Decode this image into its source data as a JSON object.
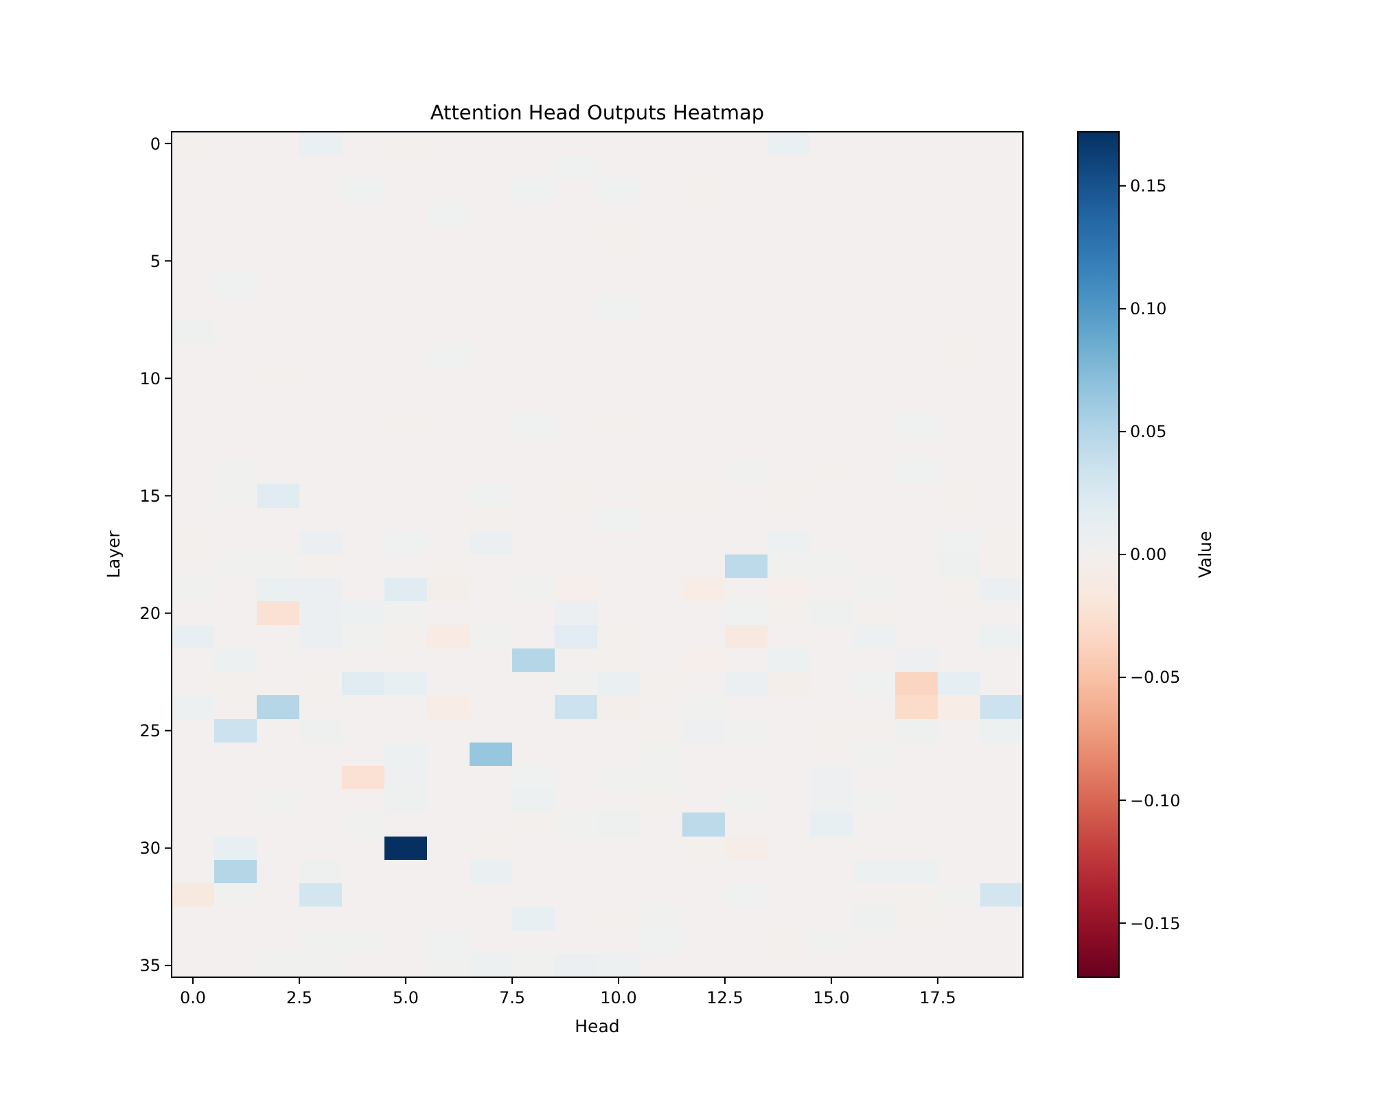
{
  "chart_data": {
    "type": "heatmap",
    "title": "Attention Head Outputs Heatmap",
    "xlabel": "Head",
    "ylabel": "Layer",
    "clabel": "Value",
    "x": [
      0,
      1,
      2,
      3,
      4,
      5,
      6,
      7,
      8,
      9,
      10,
      11,
      12,
      13,
      14,
      15,
      16,
      17,
      18,
      19
    ],
    "y_categories": [
      "0",
      null,
      null,
      null,
      null,
      "5",
      null,
      null,
      null,
      null,
      "10",
      null,
      null,
      null,
      null,
      "15",
      null,
      null,
      null,
      null,
      "20",
      null,
      null,
      null,
      null,
      "25",
      null,
      null,
      null,
      null,
      "30",
      null,
      null,
      null,
      null,
      "35"
    ],
    "xlim": [
      -0.5,
      19.5
    ],
    "xticks": [
      {
        "value": 0,
        "label": "0.0"
      },
      {
        "value": 2.5,
        "label": "2.5"
      },
      {
        "value": 5,
        "label": "5.0"
      },
      {
        "value": 7.5,
        "label": "7.5"
      },
      {
        "value": 10,
        "label": "10.0"
      },
      {
        "value": 12.5,
        "label": "12.5"
      },
      {
        "value": 15,
        "label": "15.0"
      },
      {
        "value": 17.5,
        "label": "17.5"
      }
    ],
    "clim": [
      -0.172,
      0.172
    ],
    "cticks": [
      {
        "value": -0.15,
        "label": "−0.15"
      },
      {
        "value": -0.1,
        "label": "−0.10"
      },
      {
        "value": -0.05,
        "label": "−0.05"
      },
      {
        "value": 0,
        "label": "0.00"
      },
      {
        "value": 0.05,
        "label": "0.05"
      },
      {
        "value": 0.1,
        "label": "0.10"
      },
      {
        "value": 0.15,
        "label": "0.15"
      }
    ],
    "cells": [
      [
        -0.003,
        0,
        0,
        0.01,
        0,
        -0.002,
        0,
        0,
        0,
        0,
        0,
        0,
        0,
        0,
        0.01,
        0,
        0,
        0,
        0,
        0
      ],
      [
        0,
        0,
        0,
        0,
        0,
        0,
        0,
        0,
        0,
        0.004,
        0,
        0,
        0,
        0,
        0,
        0,
        0,
        0,
        0,
        0
      ],
      [
        0,
        0,
        0,
        0,
        0.004,
        0,
        0,
        0,
        0.004,
        0,
        0.004,
        0,
        -0.002,
        0,
        0,
        0,
        0,
        0,
        0,
        0
      ],
      [
        0,
        0,
        0,
        0,
        0,
        0,
        0.004,
        0,
        0,
        0,
        0,
        0,
        0,
        0,
        0,
        0,
        0,
        0,
        0,
        0
      ],
      [
        0,
        0,
        0,
        0,
        0,
        0,
        0,
        0,
        0,
        0,
        -0.002,
        0,
        0,
        0,
        0,
        0,
        0,
        0,
        0,
        0
      ],
      [
        0,
        0,
        0,
        0,
        0,
        0,
        0,
        0,
        0,
        0,
        0,
        0,
        0,
        0,
        0,
        0,
        0,
        0,
        0,
        0
      ],
      [
        0,
        0.004,
        0,
        0,
        0,
        0,
        0,
        0,
        0,
        0,
        0,
        0,
        0,
        0,
        0,
        0,
        0,
        0,
        0,
        0
      ],
      [
        0,
        0,
        0,
        0,
        0,
        0,
        0,
        0,
        0,
        0,
        0.004,
        0,
        0,
        0,
        0,
        0,
        0,
        0,
        0,
        0
      ],
      [
        0.005,
        0,
        0,
        0,
        0,
        0,
        0,
        0,
        0,
        0,
        0,
        0,
        0,
        0,
        0,
        0,
        0,
        0,
        0,
        0
      ],
      [
        0,
        0,
        0,
        0,
        0,
        0,
        0.004,
        0,
        0,
        0,
        0,
        0,
        0,
        0,
        0,
        0,
        0,
        0,
        -0.002,
        0
      ],
      [
        0,
        0,
        -0.002,
        0,
        0,
        0,
        0,
        0,
        0,
        0,
        0,
        0,
        0,
        0,
        0,
        0,
        0,
        0,
        0,
        0
      ],
      [
        0,
        0,
        0,
        0,
        0,
        0,
        0,
        0,
        0,
        0,
        0,
        0,
        0,
        0,
        0,
        0,
        0,
        0,
        0,
        0
      ],
      [
        0,
        0,
        0,
        0,
        0,
        -0.002,
        0,
        0,
        0.004,
        0,
        -0.002,
        0,
        0,
        0,
        0,
        0,
        0,
        0.004,
        0,
        0
      ],
      [
        0,
        0,
        0,
        0,
        0,
        0,
        0,
        0,
        0,
        0,
        0,
        0,
        0,
        0,
        0,
        0,
        0,
        0,
        0,
        0
      ],
      [
        0,
        0.003,
        0,
        0,
        0,
        0,
        0,
        0,
        0,
        0,
        0,
        0,
        0,
        0.003,
        0,
        -0.002,
        0,
        0.004,
        0,
        0
      ],
      [
        0,
        0.003,
        0.02,
        0,
        0,
        0,
        0,
        0.004,
        0,
        -0.002,
        0,
        -0.002,
        -0.002,
        0,
        -0.002,
        0,
        0,
        0,
        -0.002,
        0
      ],
      [
        0,
        0,
        0,
        0,
        0,
        0,
        0,
        -0.002,
        0,
        0,
        0.004,
        0,
        0,
        0,
        0,
        0,
        0,
        0,
        0,
        0
      ],
      [
        -0.003,
        0,
        0,
        0.008,
        0,
        0.004,
        0,
        0.008,
        0,
        0,
        0,
        0,
        0,
        0,
        0.006,
        0,
        0,
        0,
        0.004,
        -0.002
      ],
      [
        0,
        0.003,
        0.003,
        -0.003,
        0,
        0,
        -0.002,
        0,
        0,
        0,
        0,
        0,
        0,
        0.045,
        0.003,
        0.003,
        0,
        0,
        0.005,
        -0.002
      ],
      [
        0.003,
        0,
        0.01,
        0.008,
        0,
        0.02,
        -0.004,
        0,
        0.003,
        -0.005,
        0,
        0,
        -0.01,
        0,
        -0.005,
        0,
        0.003,
        0,
        -0.002,
        0.008
      ],
      [
        0,
        0,
        -0.025,
        0.008,
        0.006,
        0.002,
        0,
        0,
        0,
        0.008,
        0,
        0,
        0,
        0.004,
        -0.002,
        0.005,
        -0.003,
        0,
        0,
        0
      ],
      [
        0.012,
        0,
        0,
        0.008,
        0.002,
        -0.003,
        -0.012,
        0.002,
        0,
        0.018,
        -0.002,
        0,
        0,
        -0.015,
        0,
        0,
        0.006,
        0,
        0,
        0.006
      ],
      [
        0,
        0.006,
        0,
        0,
        0,
        0,
        0,
        0,
        0.05,
        0,
        -0.002,
        0,
        -0.005,
        0,
        0.006,
        0,
        0,
        0.007,
        0,
        0
      ],
      [
        0,
        -0.002,
        0,
        -0.002,
        0.02,
        0.012,
        0,
        0,
        0,
        0.003,
        0.01,
        -0.002,
        0,
        0.008,
        -0.004,
        0,
        0.004,
        -0.035,
        0.015,
        0
      ],
      [
        0.006,
        0,
        0.05,
        0,
        0,
        0,
        -0.01,
        0,
        0,
        0.035,
        -0.004,
        0,
        0.002,
        0,
        0,
        0,
        0,
        -0.03,
        -0.01,
        0.035
      ],
      [
        0,
        0.035,
        0,
        0.005,
        0,
        0,
        0,
        0,
        0,
        0,
        0,
        -0.003,
        0.007,
        0.003,
        0,
        -0.002,
        -0.002,
        0.005,
        0,
        0.006
      ],
      [
        0,
        0,
        0,
        0,
        0,
        0.006,
        0,
        0.065,
        0,
        0,
        0,
        0.002,
        0,
        0,
        0,
        0,
        0.002,
        0,
        0,
        0
      ],
      [
        0,
        0,
        0,
        0,
        -0.025,
        0.007,
        0,
        0,
        0.004,
        0,
        0.002,
        0.002,
        0,
        0,
        0,
        0.007,
        0,
        0,
        0,
        0
      ],
      [
        0,
        0,
        0.002,
        0,
        0,
        0.005,
        0,
        0,
        0.006,
        0,
        0,
        -0.002,
        0,
        0.002,
        0,
        0.007,
        0.002,
        0,
        0,
        0
      ],
      [
        0,
        0,
        0,
        0,
        0.002,
        0,
        0,
        0,
        -0.003,
        0.002,
        0.005,
        0,
        0.045,
        0,
        0,
        0.012,
        0,
        0,
        0,
        0
      ],
      [
        0,
        0.012,
        0,
        0,
        0,
        0.172,
        0,
        -0.003,
        0,
        0,
        0,
        0,
        -0.002,
        -0.008,
        0,
        0,
        0,
        0,
        0,
        0
      ],
      [
        0,
        0.05,
        0,
        0.005,
        0,
        0,
        0,
        0.01,
        0,
        0,
        0,
        0,
        0,
        0,
        0,
        0,
        0.006,
        0.006,
        0,
        0
      ],
      [
        -0.015,
        0.002,
        0,
        0.03,
        0,
        0,
        0,
        0,
        0,
        0,
        0,
        0,
        0,
        0.004,
        0,
        0,
        0,
        -0.002,
        0.002,
        0.03
      ],
      [
        0,
        0,
        0,
        0,
        0,
        0,
        0,
        0,
        0.012,
        0,
        -0.002,
        0.002,
        0,
        0,
        0,
        0,
        0.005,
        -0.003,
        0,
        0
      ],
      [
        0,
        0,
        0,
        0.002,
        0.002,
        0,
        0.004,
        0,
        0,
        0,
        0,
        0.004,
        0,
        0,
        -0.002,
        0.002,
        0,
        0,
        0,
        0
      ],
      [
        0,
        0,
        0.003,
        0.003,
        0,
        0,
        0.003,
        0.006,
        0.003,
        0.008,
        0.006,
        0,
        0,
        0,
        0,
        0,
        0,
        0,
        0,
        0
      ]
    ]
  }
}
